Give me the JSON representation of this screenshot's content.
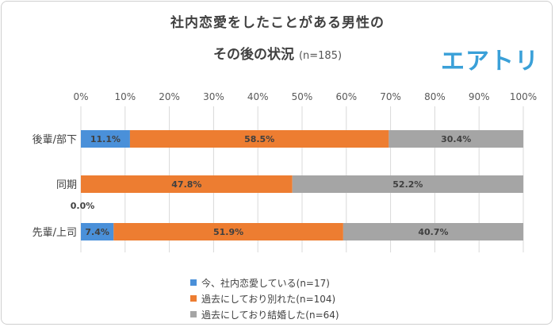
{
  "title": {
    "line1": "社内恋愛をしたことがある男性の",
    "line2": "その後の状況",
    "n": "(n=185)"
  },
  "logo": {
    "text": "エアトリ"
  },
  "chart_data": {
    "type": "bar",
    "orientation": "horizontal",
    "stacked": "percent",
    "categories": [
      "後輩/部下",
      "同期",
      "先輩/上司"
    ],
    "series": [
      {
        "name": "今、社内恋愛している(n=17)",
        "color": "#4a90d9",
        "values": [
          11.1,
          0.0,
          7.4
        ],
        "labels": [
          "11.1%",
          "0.0%",
          "7.4%"
        ]
      },
      {
        "name": "過去にしており別れた(n=104)",
        "color": "#ed7d31",
        "values": [
          58.5,
          47.8,
          51.9
        ],
        "labels": [
          "58.5%",
          "47.8%",
          "51.9%"
        ]
      },
      {
        "name": "過去にしており結婚した(n=64)",
        "color": "#a5a5a5",
        "values": [
          30.4,
          52.2,
          40.7
        ],
        "labels": [
          "30.4%",
          "52.2%",
          "40.7%"
        ]
      }
    ],
    "xlim": [
      0,
      100
    ],
    "xticks": [
      "0%",
      "10%",
      "20%",
      "30%",
      "40%",
      "50%",
      "60%",
      "70%",
      "80%",
      "90%",
      "100%"
    ],
    "grid": true,
    "legend_position": "bottom"
  }
}
